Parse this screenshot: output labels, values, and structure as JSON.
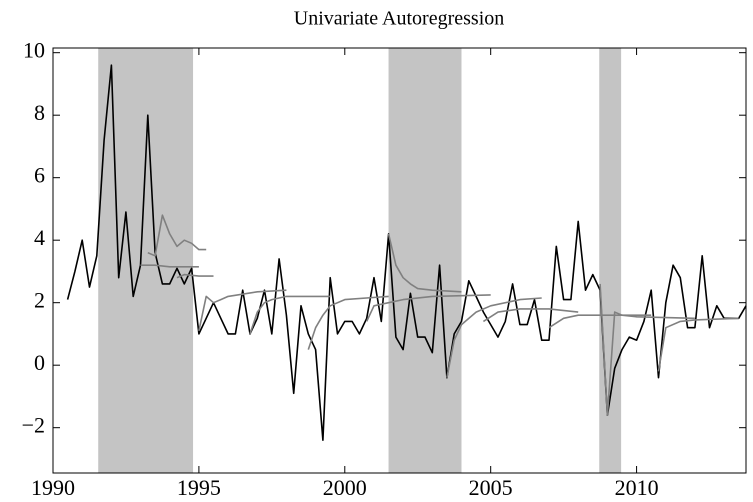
{
  "chart_data": {
    "type": "line",
    "title": "Univariate Autoregression",
    "xlim": [
      1990,
      2013.75
    ],
    "ylim": [
      -3.45,
      10.15
    ],
    "xticks": [
      1990,
      1995,
      2000,
      2005,
      2010
    ],
    "yticks": [
      {
        "value": -2,
        "label": "−2"
      },
      0,
      2,
      4,
      6,
      8,
      10
    ],
    "shading": [
      [
        1991.55,
        1994.8
      ],
      [
        2001.5,
        2004.0
      ],
      [
        2008.72,
        2009.47
      ]
    ],
    "shading_color": "#c4c4c4",
    "series": [
      {
        "color": "#000000",
        "x": [
          1990.5,
          1990.75,
          1991,
          1991.25,
          1991.5,
          1991.75,
          1992,
          1992.25,
          1992.5,
          1992.75,
          1993,
          1993.25,
          1993.5,
          1993.75,
          1994,
          1994.25,
          1994.5,
          1994.75,
          1995,
          1995.25,
          1995.5,
          1995.75,
          1996,
          1996.25,
          1996.5,
          1996.75,
          1997,
          1997.25,
          1997.5,
          1997.75,
          1998,
          1998.25,
          1998.5,
          1998.75,
          1999,
          1999.25,
          1999.5,
          1999.75,
          2000,
          2000.25,
          2000.5,
          2000.75,
          2001,
          2001.25,
          2001.5,
          2001.75,
          2002,
          2002.25,
          2002.5,
          2002.75,
          2003,
          2003.25,
          2003.5,
          2003.75,
          2004,
          2004.25,
          2004.5,
          2004.75,
          2005,
          2005.25,
          2005.5,
          2005.75,
          2006,
          2006.25,
          2006.5,
          2006.75,
          2007,
          2007.25,
          2007.5,
          2007.75,
          2008,
          2008.25,
          2008.5,
          2008.75,
          2009,
          2009.25,
          2009.5,
          2009.75,
          2010,
          2010.25,
          2010.5,
          2010.75,
          2011,
          2011.25,
          2011.5,
          2011.75,
          2012,
          2012.25,
          2012.5,
          2012.75,
          2013,
          2013.25,
          2013.5,
          2013.75
        ],
        "values": [
          2.1,
          3.0,
          4.0,
          2.5,
          3.5,
          7.2,
          9.6,
          2.8,
          4.9,
          2.2,
          3.2,
          8.0,
          3.6,
          2.6,
          2.6,
          3.1,
          2.6,
          3.1,
          1.0,
          1.5,
          2.0,
          1.5,
          1.0,
          1.0,
          2.4,
          1.0,
          1.5,
          2.4,
          1.0,
          3.4,
          1.6,
          -0.9,
          1.9,
          1.0,
          0.5,
          -2.4,
          2.8,
          1.0,
          1.4,
          1.4,
          1.0,
          1.5,
          2.8,
          1.4,
          4.2,
          0.9,
          0.5,
          2.3,
          0.9,
          0.9,
          0.4,
          3.2,
          -0.4,
          1.0,
          1.4,
          2.7,
          2.2,
          1.7,
          1.3,
          0.9,
          1.4,
          2.6,
          1.3,
          1.3,
          2.1,
          0.8,
          0.8,
          3.8,
          2.1,
          2.1,
          4.6,
          2.4,
          2.9,
          2.4,
          -1.6,
          -0.1,
          0.5,
          0.9,
          0.8,
          1.4,
          2.4,
          -0.4,
          2.0,
          3.2,
          2.8,
          1.2,
          1.2,
          3.5,
          1.2,
          1.9,
          1.5,
          1.5,
          1.5,
          1.9
        ]
      },
      {
        "color": "#808080",
        "x": [
          1993.25,
          1993.5,
          1993.75,
          1994,
          1994.25,
          1994.5,
          1994.75,
          1995,
          1995.25
        ],
        "values": [
          3.6,
          3.5,
          4.8,
          4.2,
          3.8,
          4.0,
          3.9,
          3.7,
          3.7
        ]
      },
      {
        "color": "#808080",
        "x": [
          1993,
          1993.5,
          1994,
          1994.5,
          1995
        ],
        "values": [
          3.2,
          3.2,
          3.15,
          3.15,
          3.15
        ]
      },
      {
        "color": "#808080",
        "x": [
          1994.25,
          1994.5,
          1995,
          1995.5
        ],
        "values": [
          2.8,
          2.9,
          2.85,
          2.85
        ]
      },
      {
        "color": "#808080",
        "x": [
          1995,
          1995.25,
          1995.5,
          1995.75,
          1996,
          1997,
          1998
        ],
        "values": [
          1.1,
          2.2,
          2.0,
          2.1,
          2.2,
          2.35,
          2.4
        ]
      },
      {
        "color": "#808080",
        "x": [
          1996.75,
          1997,
          1997.25,
          1997.5,
          1998,
          1999.5
        ],
        "values": [
          1.0,
          1.7,
          2.0,
          2.1,
          2.2,
          2.2
        ]
      },
      {
        "color": "#808080",
        "x": [
          1998.75,
          1999,
          1999.25,
          1999.5,
          2000,
          2001.5
        ],
        "values": [
          0.5,
          1.2,
          1.6,
          1.9,
          2.1,
          2.2
        ]
      },
      {
        "color": "#808080",
        "x": [
          2000.75,
          2001,
          2001.5,
          2002,
          2003,
          2005
        ],
        "values": [
          1.4,
          1.9,
          2.0,
          2.1,
          2.2,
          2.25
        ]
      },
      {
        "color": "#808080",
        "x": [
          2001.5,
          2001.75,
          2002,
          2002.25,
          2002.5,
          2003,
          2004
        ],
        "values": [
          4.2,
          3.2,
          2.8,
          2.6,
          2.45,
          2.4,
          2.35
        ]
      },
      {
        "color": "#808080",
        "x": [
          2003.5,
          2003.75,
          2004,
          2004.5,
          2005,
          2006,
          2006.75
        ],
        "values": [
          -0.4,
          0.8,
          1.3,
          1.7,
          1.9,
          2.1,
          2.15
        ]
      },
      {
        "color": "#808080",
        "x": [
          2004.75,
          2005.25,
          2006,
          2007,
          2008
        ],
        "values": [
          1.4,
          1.7,
          1.8,
          1.8,
          1.7
        ]
      },
      {
        "color": "#808080",
        "x": [
          2007,
          2007.5,
          2008,
          2009,
          2010.5
        ],
        "values": [
          1.2,
          1.5,
          1.6,
          1.6,
          1.6
        ]
      },
      {
        "color": "#808080",
        "x": [
          2008.75,
          2009,
          2009.25,
          2009.5,
          2010,
          2012
        ],
        "values": [
          2.6,
          -1.6,
          1.7,
          1.6,
          1.55,
          1.5
        ]
      },
      {
        "color": "#808080",
        "x": [
          2010.75,
          2011,
          2011.5,
          2012,
          2013.5
        ],
        "values": [
          -0.2,
          1.2,
          1.4,
          1.45,
          1.5
        ]
      }
    ]
  }
}
